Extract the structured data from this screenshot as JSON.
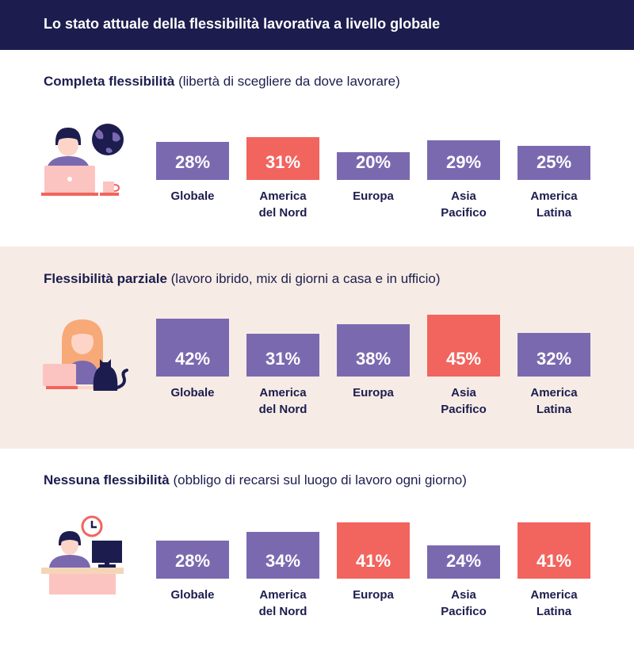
{
  "header": {
    "title": "Lo stato attuale della flessibilità lavorativa a livello globale"
  },
  "colors": {
    "purple": "#7b69b0",
    "coral": "#f2645e",
    "navy": "#1c1d4e",
    "beige": "#f6ece5"
  },
  "chart_data": [
    {
      "type": "bar",
      "title": "Completa flessibilità",
      "subtitle": "(libertà di scegliere da dove lavorare)",
      "illustration": "person-laptop-globe-icon",
      "categories": [
        [
          "Globale"
        ],
        [
          "America",
          "del Nord"
        ],
        [
          "Europa"
        ],
        [
          "Asia",
          "Pacifico"
        ],
        [
          "America",
          "Latina"
        ]
      ],
      "values": [
        28,
        31,
        20,
        29,
        25
      ],
      "labels": [
        "28%",
        "31%",
        "20%",
        "29%",
        "25%"
      ],
      "highlight": [
        false,
        true,
        false,
        false,
        false
      ]
    },
    {
      "type": "bar",
      "title": "Flessibilità parziale",
      "subtitle": "(lavoro ibrido, mix di giorni a casa e in ufficio)",
      "illustration": "person-laptop-cat-icon",
      "categories": [
        [
          "Globale"
        ],
        [
          "America",
          "del Nord"
        ],
        [
          "Europa"
        ],
        [
          "Asia",
          "Pacifico"
        ],
        [
          "America",
          "Latina"
        ]
      ],
      "values": [
        42,
        31,
        38,
        45,
        32
      ],
      "labels": [
        "42%",
        "31%",
        "38%",
        "45%",
        "32%"
      ],
      "highlight": [
        false,
        false,
        false,
        true,
        false
      ]
    },
    {
      "type": "bar",
      "title": "Nessuna flessibilità",
      "subtitle": "(obbligo di recarsi sul luogo di lavoro ogni giorno)",
      "illustration": "person-desk-clock-icon",
      "categories": [
        [
          "Globale"
        ],
        [
          "America",
          "del Nord"
        ],
        [
          "Europa"
        ],
        [
          "Asia",
          "Pacifico"
        ],
        [
          "America",
          "Latina"
        ]
      ],
      "values": [
        28,
        34,
        41,
        24,
        41
      ],
      "labels": [
        "28%",
        "34%",
        "41%",
        "24%",
        "41%"
      ],
      "highlight": [
        false,
        false,
        true,
        false,
        true
      ]
    }
  ]
}
